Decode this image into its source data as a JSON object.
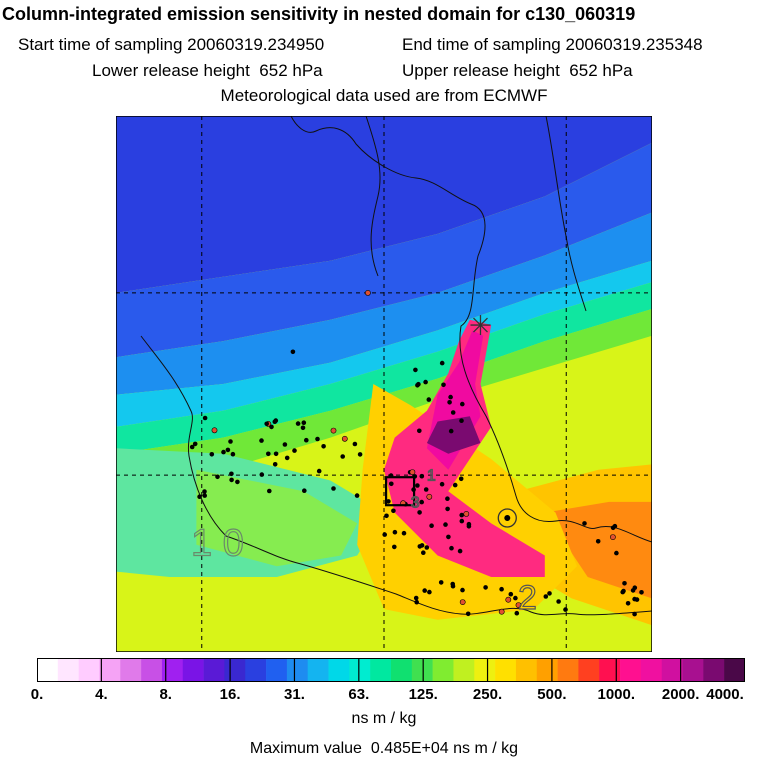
{
  "chart_data": {
    "type": "heatmap",
    "title": "Column-integrated emission sensitivity in nested domain for c130_060319",
    "subtitle_lines": [
      {
        "start_label": "Start time of sampling",
        "start_value": "20060319.234950",
        "end_label": "End time of sampling",
        "end_value": "20060319.235348"
      },
      {
        "lower_label": "Lower release height",
        "lower_value": "652 hPa",
        "upper_label": "Upper release height",
        "upper_value": "652 hPa"
      }
    ],
    "met_line": "Meteorological data used are from ECMWF",
    "colorbar": {
      "tick_labels": [
        "0.",
        "4.",
        "8.",
        "16.",
        "31.",
        "63.",
        "125.",
        "250.",
        "500.",
        "1000.",
        "2000.",
        "4000."
      ],
      "unit": "ns m / kg",
      "colors": [
        "#ffffff",
        "#ffe6ff",
        "#ffccff",
        "#f5a3f5",
        "#e07aea",
        "#c850e6",
        "#a020f0",
        "#7a14e6",
        "#5a1ad6",
        "#3a28d0",
        "#2a40e0",
        "#2060f0",
        "#1e8cf0",
        "#14b4f0",
        "#00d8e8",
        "#00ecd0",
        "#00e8a0",
        "#10e070",
        "#40e050",
        "#80ec30",
        "#c0f020",
        "#eef010",
        "#ffe000",
        "#ffc000",
        "#ffa000",
        "#ff7a10",
        "#ff4020",
        "#ff1050",
        "#ff1090",
        "#f010a0",
        "#d010a0",
        "#a81090",
        "#7a0a70",
        "#4a0848"
      ]
    },
    "field": {
      "background": "#d8f418",
      "layers": [
        {
          "color": "#2a3fe0",
          "points": [
            [
              0,
              0
            ],
            [
              1,
              0
            ],
            [
              1,
              0.05
            ],
            [
              0.8,
              0.15
            ],
            [
              0.6,
              0.22
            ],
            [
              0.4,
              0.27
            ],
            [
              0.2,
              0.3
            ],
            [
              0,
              0.33
            ]
          ]
        },
        {
          "color": "#2a5aec",
          "points": [
            [
              0,
              0.33
            ],
            [
              0.2,
              0.3
            ],
            [
              0.4,
              0.27
            ],
            [
              0.6,
              0.22
            ],
            [
              0.8,
              0.15
            ],
            [
              1,
              0.05
            ],
            [
              1,
              0.18
            ],
            [
              0.8,
              0.26
            ],
            [
              0.6,
              0.33
            ],
            [
              0.4,
              0.38
            ],
            [
              0.2,
              0.42
            ],
            [
              0,
              0.45
            ]
          ]
        },
        {
          "color": "#1d8ff0",
          "points": [
            [
              0,
              0.45
            ],
            [
              0.2,
              0.42
            ],
            [
              0.4,
              0.38
            ],
            [
              0.6,
              0.33
            ],
            [
              0.8,
              0.26
            ],
            [
              1,
              0.18
            ],
            [
              1,
              0.27
            ],
            [
              0.8,
              0.33
            ],
            [
              0.6,
              0.4
            ],
            [
              0.4,
              0.46
            ],
            [
              0.2,
              0.5
            ],
            [
              0,
              0.52
            ]
          ]
        },
        {
          "color": "#14c8ee",
          "points": [
            [
              0,
              0.52
            ],
            [
              0.2,
              0.5
            ],
            [
              0.4,
              0.46
            ],
            [
              0.6,
              0.4
            ],
            [
              0.8,
              0.33
            ],
            [
              1,
              0.27
            ],
            [
              1,
              0.31
            ],
            [
              0.8,
              0.37
            ],
            [
              0.6,
              0.44
            ],
            [
              0.4,
              0.5
            ],
            [
              0.2,
              0.55
            ],
            [
              0,
              0.58
            ]
          ]
        },
        {
          "color": "#10e6a0",
          "points": [
            [
              0,
              0.58
            ],
            [
              0.2,
              0.55
            ],
            [
              0.4,
              0.5
            ],
            [
              0.6,
              0.44
            ],
            [
              0.8,
              0.37
            ],
            [
              1,
              0.31
            ],
            [
              1,
              0.36
            ],
            [
              0.8,
              0.42
            ],
            [
              0.6,
              0.49
            ],
            [
              0.4,
              0.55
            ],
            [
              0.2,
              0.6
            ],
            [
              0,
              0.63
            ]
          ]
        },
        {
          "color": "#70e838",
          "points": [
            [
              0,
              0.63
            ],
            [
              0.2,
              0.6
            ],
            [
              0.4,
              0.55
            ],
            [
              0.6,
              0.49
            ],
            [
              0.8,
              0.42
            ],
            [
              1,
              0.36
            ],
            [
              1,
              0.41
            ],
            [
              0.8,
              0.47
            ],
            [
              0.6,
              0.53
            ],
            [
              0.4,
              0.6
            ],
            [
              0.2,
              0.66
            ],
            [
              0,
              0.7
            ]
          ]
        },
        {
          "color": "#5ee6a0",
          "points": [
            [
              0,
              0.62
            ],
            [
              0.2,
              0.63
            ],
            [
              0.4,
              0.68
            ],
            [
              0.5,
              0.74
            ],
            [
              0.45,
              0.82
            ],
            [
              0.3,
              0.86
            ],
            [
              0.1,
              0.86
            ],
            [
              0,
              0.85
            ]
          ]
        },
        {
          "color": "#86ec50",
          "points": [
            [
              0.15,
              0.66
            ],
            [
              0.35,
              0.7
            ],
            [
              0.45,
              0.76
            ],
            [
              0.42,
              0.82
            ],
            [
              0.3,
              0.84
            ],
            [
              0.15,
              0.8
            ]
          ]
        },
        {
          "color": "#ffc400",
          "points": [
            [
              0.75,
              0.7
            ],
            [
              0.9,
              0.66
            ],
            [
              1,
              0.65
            ],
            [
              1,
              0.95
            ],
            [
              0.85,
              0.9
            ],
            [
              0.75,
              0.84
            ]
          ]
        },
        {
          "color": "#ff8a10",
          "points": [
            [
              0.8,
              0.74
            ],
            [
              0.92,
              0.72
            ],
            [
              1,
              0.72
            ],
            [
              1,
              0.9
            ],
            [
              0.88,
              0.86
            ]
          ]
        },
        {
          "color": "#ffd000",
          "points": [
            [
              0.48,
              0.5
            ],
            [
              0.55,
              0.54
            ],
            [
              0.7,
              0.64
            ],
            [
              0.82,
              0.74
            ],
            [
              0.86,
              0.84
            ],
            [
              0.78,
              0.92
            ],
            [
              0.6,
              0.94
            ],
            [
              0.5,
              0.92
            ],
            [
              0.45,
              0.8
            ],
            [
              0.46,
              0.66
            ]
          ]
        },
        {
          "color": "#ff2a80",
          "points": [
            [
              0.66,
              0.38
            ],
            [
              0.7,
              0.39
            ],
            [
              0.68,
              0.5
            ],
            [
              0.7,
              0.58
            ],
            [
              0.62,
              0.7
            ],
            [
              0.7,
              0.76
            ],
            [
              0.8,
              0.82
            ],
            [
              0.8,
              0.86
            ],
            [
              0.7,
              0.86
            ],
            [
              0.6,
              0.82
            ],
            [
              0.52,
              0.74
            ],
            [
              0.5,
              0.66
            ],
            [
              0.52,
              0.6
            ],
            [
              0.58,
              0.55
            ],
            [
              0.62,
              0.48
            ],
            [
              0.64,
              0.42
            ]
          ]
        },
        {
          "color": "#f00aa0",
          "points": [
            [
              0.665,
              0.4
            ],
            [
              0.685,
              0.41
            ],
            [
              0.67,
              0.5
            ],
            [
              0.68,
              0.56
            ],
            [
              0.62,
              0.66
            ],
            [
              0.58,
              0.62
            ],
            [
              0.6,
              0.52
            ],
            [
              0.64,
              0.46
            ]
          ]
        },
        {
          "color": "#7a0a70",
          "points": [
            [
              0.6,
              0.57
            ],
            [
              0.66,
              0.56
            ],
            [
              0.68,
              0.61
            ],
            [
              0.62,
              0.63
            ],
            [
              0.58,
              0.61
            ]
          ]
        }
      ]
    },
    "grid_fractions": [
      0.16,
      0.5,
      0.84
    ],
    "grid_fractions_y": [
      0.33,
      0.67
    ],
    "receptor_marker": [
      0.68,
      0.39
    ],
    "labels": [
      {
        "text": "1 0",
        "pos": [
          0.14,
          0.82
        ]
      },
      {
        "text": "2",
        "pos": [
          0.75,
          0.92
        ]
      },
      {
        "text": "3",
        "pos": [
          0.55,
          0.73
        ]
      },
      {
        "text": "1",
        "pos": [
          0.58,
          0.68
        ]
      }
    ],
    "circle_marker": [
      0.73,
      0.75
    ],
    "source_box": [
      0.53,
      0.7
    ],
    "max_label": "Maximum value",
    "max_value": "0.485E+04",
    "max_unit": "ns m / kg"
  }
}
